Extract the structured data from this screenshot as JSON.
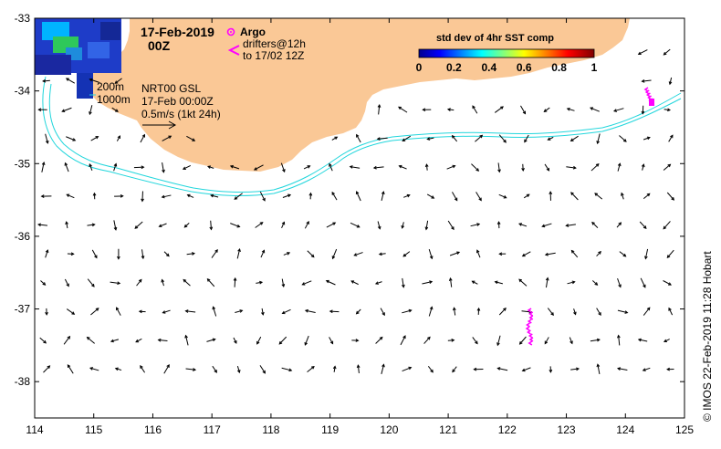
{
  "map": {
    "date": "17-Feb-2019",
    "time": "00Z",
    "legend": {
      "argo_label": "Argo",
      "drifters_label": "drifters@12h",
      "drifters_sub": "to 17/02 12Z"
    },
    "isobaths": {
      "shallow": "200m",
      "deep": "1000m"
    },
    "product": {
      "line1": "NRT00 GSL",
      "line2": "17-Feb 00:00Z",
      "line3": "0.5m/s (1kt 24h)"
    },
    "colorbar": {
      "title": "std dev of 4hr SST comp",
      "ticks": [
        "0",
        "0.2",
        "0.4",
        "0.6",
        "0.8",
        "1"
      ]
    },
    "axes": {
      "x_ticks": [
        "114",
        "115",
        "116",
        "117",
        "118",
        "119",
        "120",
        "121",
        "122",
        "123",
        "124",
        "125"
      ],
      "y_ticks": [
        "-33",
        "-34",
        "-35",
        "-36",
        "-37",
        "-38"
      ],
      "lon_range": [
        114,
        125
      ],
      "lat_range": [
        -38.5,
        -33
      ]
    },
    "credit": "IMOS 22-Feb-2019 11:28 Hobart",
    "colors": {
      "land": "#fac896",
      "isobath": "#22d6dc",
      "drifter": "#ff00ff",
      "vector": "#000000"
    }
  }
}
